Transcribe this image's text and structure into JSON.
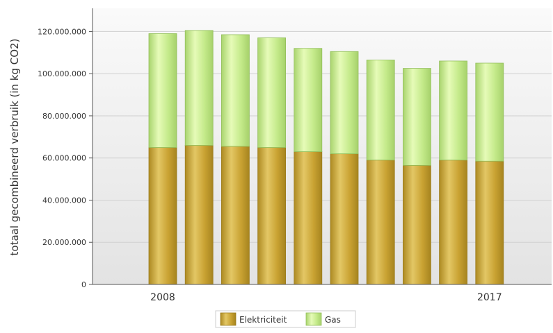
{
  "chart_data": {
    "type": "bar",
    "stacked": true,
    "ylabel": "totaal gecombineerd verbruik (in kg CO2)",
    "categories": [
      "2008",
      "",
      "",
      "",
      "",
      "",
      "",
      "",
      "",
      "2017"
    ],
    "x_tick_labels": [
      "2008",
      "2017"
    ],
    "series": [
      {
        "name": "Elektriciteit",
        "color": "#c9a232",
        "values": [
          65000000,
          66000000,
          65500000,
          65000000,
          63000000,
          62000000,
          59000000,
          56500000,
          59000000,
          58500000
        ]
      },
      {
        "name": "Gas",
        "color": "#c4ea8a",
        "values": [
          54000000,
          54500000,
          53000000,
          52000000,
          49000000,
          48500000,
          47500000,
          46000000,
          47000000,
          46500000
        ]
      }
    ],
    "y_ticks": [
      "0",
      "20.000.000",
      "40.000.000",
      "60.000.000",
      "80.000.000",
      "100.000.000",
      "120.000.000"
    ],
    "y_tick_values": [
      0,
      20000000,
      40000000,
      60000000,
      80000000,
      100000000,
      120000000
    ],
    "ylim": [
      0,
      131000000
    ],
    "grid": true,
    "legend_position": "bottom"
  }
}
